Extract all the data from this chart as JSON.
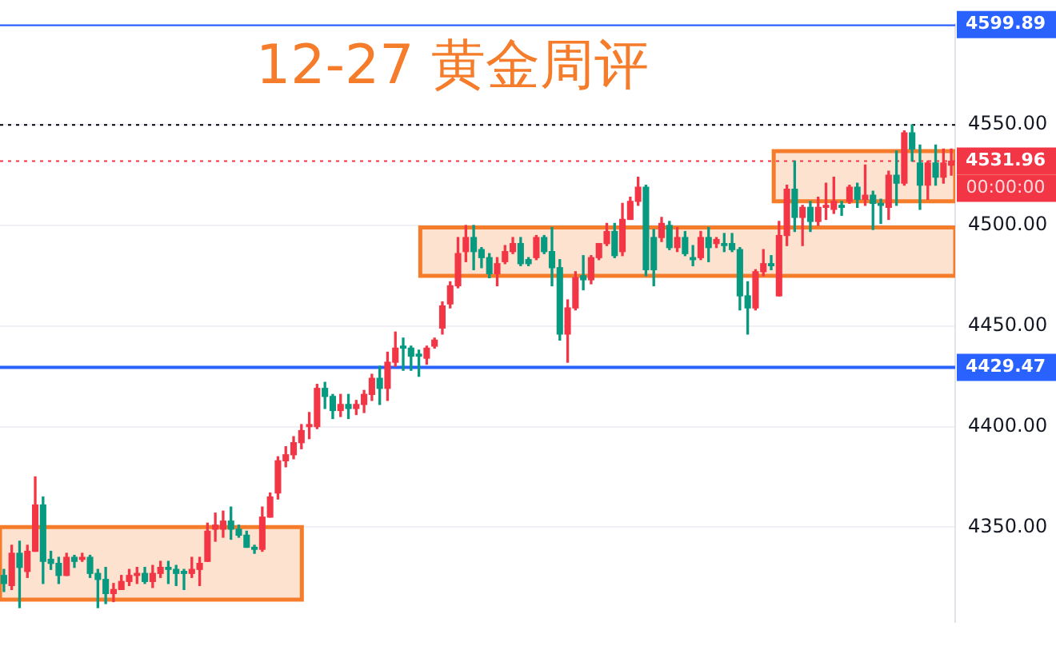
{
  "chart_data": {
    "type": "candlestick",
    "title": "12-27 黄金周评",
    "categories": [
      null,
      null,
      null,
      null,
      null,
      null,
      null,
      null,
      null,
      null,
      null,
      null,
      null,
      null,
      null,
      null,
      null,
      null,
      null,
      null,
      null,
      null,
      null,
      null,
      null,
      null,
      null,
      null,
      null,
      null,
      null,
      null,
      null,
      null,
      null,
      null,
      null,
      null,
      null,
      null,
      null,
      null,
      null,
      null,
      null,
      null,
      null,
      null,
      null,
      null,
      null,
      null,
      null,
      null,
      null,
      null,
      null,
      null,
      null,
      null,
      null,
      null,
      null,
      null,
      null,
      null,
      null,
      null,
      null,
      null,
      null,
      null,
      null,
      null,
      null,
      null,
      null,
      null,
      null,
      null,
      null,
      null,
      null,
      null,
      null,
      null,
      null,
      null,
      null,
      null,
      null,
      null,
      null,
      null,
      null,
      null,
      null,
      null,
      null,
      null,
      null,
      null,
      null,
      null,
      null,
      null,
      null,
      null,
      null,
      null,
      null,
      null,
      null,
      null,
      null,
      null,
      null,
      null,
      null,
      null,
      null,
      null
    ],
    "ohlc": [
      [
        4326,
        4329,
        4318,
        4322
      ],
      [
        4321,
        4341,
        4319,
        4337
      ],
      [
        4337,
        4343,
        4310,
        4330
      ],
      [
        4328,
        4341,
        4325,
        4338
      ],
      [
        4338,
        4375,
        4338,
        4361
      ],
      [
        4361,
        4365,
        4322,
        4333
      ],
      [
        4334,
        4338,
        4329,
        4332
      ],
      [
        4332,
        4335,
        4322,
        4326
      ],
      [
        4326,
        4337,
        4326,
        4335
      ],
      [
        4335,
        4336,
        4330,
        4333
      ],
      [
        4334,
        4337,
        4333,
        4335
      ],
      [
        4335,
        4336,
        4325,
        4327
      ],
      [
        4327,
        4329,
        4310,
        4324
      ],
      [
        4324,
        4330,
        4312,
        4317
      ],
      [
        4317,
        4322,
        4313,
        4319
      ],
      [
        4319,
        4326,
        4319,
        4323
      ],
      [
        4323,
        4329,
        4321,
        4326
      ],
      [
        4326,
        4330,
        4322,
        4327
      ],
      [
        4327,
        4330,
        4322,
        4323
      ],
      [
        4323,
        4331,
        4320,
        4327
      ],
      [
        4327,
        4333,
        4325,
        4330
      ],
      [
        4330,
        4333,
        4322,
        4329
      ],
      [
        4329,
        4331,
        4321,
        4327
      ],
      [
        4328,
        4329,
        4319,
        4327
      ],
      [
        4327,
        4335,
        4325,
        4329
      ],
      [
        4329,
        4335,
        4321,
        4332
      ],
      [
        4333,
        4352,
        4333,
        4348
      ],
      [
        4349,
        4357,
        4343,
        4351
      ],
      [
        4349,
        4358,
        4345,
        4353
      ],
      [
        4353,
        4360,
        4344,
        4349
      ],
      [
        4349,
        4351,
        4345,
        4346
      ],
      [
        4346,
        4348,
        4340,
        4340
      ],
      [
        4340,
        4341,
        4337,
        4339
      ],
      [
        4339,
        4360,
        4338,
        4355
      ],
      [
        4355,
        4367,
        4355,
        4365
      ],
      [
        4367,
        4385,
        4364,
        4383
      ],
      [
        4383,
        4390,
        4380,
        4386
      ],
      [
        4386,
        4395,
        4384,
        4392
      ],
      [
        4392,
        4401,
        4389,
        4398
      ],
      [
        4400,
        4407,
        4394,
        4401
      ],
      [
        4400,
        4421,
        4399,
        4419
      ],
      [
        4419,
        4422,
        4409,
        4415
      ],
      [
        4415,
        4416,
        4404,
        4408
      ],
      [
        4408,
        4416,
        4405,
        4411
      ],
      [
        4411,
        4416,
        4404,
        4409
      ],
      [
        4409,
        4413,
        4406,
        4411
      ],
      [
        4411,
        4418,
        4407,
        4416
      ],
      [
        4416,
        4426,
        4413,
        4424
      ],
      [
        4424,
        4430,
        4411,
        4419
      ],
      [
        4419,
        4437,
        4413,
        4432
      ],
      [
        4432,
        4447,
        4430,
        4439
      ],
      [
        4440,
        4444,
        4428,
        4439
      ],
      [
        4439,
        4440,
        4428,
        4435
      ],
      [
        4436,
        4438,
        4425,
        4435
      ],
      [
        4434,
        4440,
        4431,
        4439
      ],
      [
        4440,
        4444,
        4439,
        4443
      ],
      [
        4449,
        4462,
        4446,
        4460
      ],
      [
        4461,
        4472,
        4459,
        4470
      ],
      [
        4470,
        4494,
        4469,
        4486
      ],
      [
        4487,
        4500,
        4482,
        4494
      ],
      [
        4494,
        4500,
        4478,
        4487
      ],
      [
        4488,
        4489,
        4479,
        4484
      ],
      [
        4484,
        4486,
        4474,
        4476
      ],
      [
        4476,
        4484,
        4470,
        4481
      ],
      [
        4482,
        4490,
        4481,
        4487
      ],
      [
        4487,
        4494,
        4486,
        4491
      ],
      [
        4491,
        4494,
        4480,
        4481
      ],
      [
        4483,
        4484,
        4480,
        4481
      ],
      [
        4484,
        4495,
        4483,
        4494
      ],
      [
        4494,
        4495,
        4486,
        4487
      ],
      [
        4487,
        4499,
        4470,
        4479
      ],
      [
        4479,
        4483,
        4443,
        4446
      ],
      [
        4446,
        4463,
        4432,
        4459
      ],
      [
        4459,
        4477,
        4458,
        4474
      ],
      [
        4475,
        4485,
        4468,
        4473
      ],
      [
        4473,
        4485,
        4471,
        4484
      ],
      [
        4484,
        4491,
        4483,
        4491
      ],
      [
        4491,
        4501,
        4490,
        4497
      ],
      [
        4497,
        4501,
        4484,
        4485
      ],
      [
        4487,
        4511,
        4485,
        4503
      ],
      [
        4503,
        4514,
        4503,
        4512
      ],
      [
        4512,
        4524,
        4510,
        4519
      ],
      [
        4519,
        4520,
        4475,
        4478
      ],
      [
        4494,
        4498,
        4470,
        4478
      ],
      [
        4494,
        4504,
        4492,
        4501
      ],
      [
        4500,
        4502,
        4488,
        4489
      ],
      [
        4489,
        4499,
        4487,
        4494
      ],
      [
        4494,
        4497,
        4485,
        4486
      ],
      [
        4484,
        4490,
        4480,
        4483
      ],
      [
        4484,
        4497,
        4483,
        4494
      ],
      [
        4494,
        4499,
        4482,
        4489
      ],
      [
        4491,
        4494,
        4489,
        4493
      ],
      [
        4491,
        4496,
        4487,
        4490
      ],
      [
        4491,
        4496,
        4487,
        4488
      ],
      [
        4488,
        4489,
        4458,
        4465
      ],
      [
        4465,
        4472,
        4446,
        4459
      ],
      [
        4459,
        4478,
        4458,
        4477
      ],
      [
        4477,
        4488,
        4475,
        4481
      ],
      [
        4481,
        4485,
        4478,
        4480
      ],
      [
        4465,
        4502,
        4465,
        4495
      ],
      [
        4495,
        4520,
        4490,
        4518
      ],
      [
        4518,
        4532,
        4497,
        4504
      ],
      [
        4504,
        4510,
        4490,
        4509
      ],
      [
        4509,
        4512,
        4497,
        4502
      ],
      [
        4502,
        4514,
        4500,
        4509
      ],
      [
        4509,
        4521,
        4503,
        4510
      ],
      [
        4508,
        4524,
        4506,
        4512
      ],
      [
        4510,
        4512,
        4505,
        4509
      ],
      [
        4512,
        4520,
        4511,
        4519
      ],
      [
        4519,
        4521,
        4509,
        4513
      ],
      [
        4513,
        4530,
        4510,
        4515
      ],
      [
        4515,
        4517,
        4498,
        4511
      ],
      [
        4511,
        4513,
        4501,
        4510
      ],
      [
        4509,
        4527,
        4503,
        4525
      ],
      [
        4525,
        4537,
        4510,
        4521
      ],
      [
        4521,
        4547,
        4520,
        4546
      ],
      [
        4546,
        4550,
        4532,
        4538
      ],
      [
        4531,
        4540,
        4508,
        4520
      ],
      [
        4520,
        4532,
        4513,
        4531
      ],
      [
        4531,
        4540,
        4520,
        4524
      ],
      [
        4524,
        4538,
        4521,
        4531
      ],
      [
        4530,
        4538,
        4525,
        4531.96
      ]
    ],
    "colors": [
      "#089981",
      "#f23645",
      "#089981",
      "#f23645",
      "#f23645",
      "#089981",
      "#089981",
      "#089981",
      "#f23645",
      "#089981",
      "#f23645",
      "#089981",
      "#089981",
      "#089981",
      "#f23645",
      "#f23645",
      "#f23645",
      "#f23645",
      "#089981",
      "#f23645",
      "#f23645",
      "#089981",
      "#089981",
      "#089981",
      "#f23645",
      "#f23645",
      "#f23645",
      "#f23645",
      "#f23645",
      "#089981",
      "#089981",
      "#089981",
      "#089981",
      "#f23645",
      "#f23645",
      "#f23645",
      "#f23645",
      "#f23645",
      "#f23645",
      "#f23645",
      "#f23645",
      "#089981",
      "#089981",
      "#f23645",
      "#089981",
      "#f23645",
      "#f23645",
      "#f23645",
      "#089981",
      "#f23645",
      "#f23645",
      "#089981",
      "#089981",
      "#089981",
      "#f23645",
      "#f23645",
      "#f23645",
      "#f23645",
      "#f23645",
      "#f23645",
      "#089981",
      "#089981",
      "#089981",
      "#f23645",
      "#f23645",
      "#f23645",
      "#089981",
      "#089981",
      "#f23645",
      "#089981",
      "#089981",
      "#089981",
      "#f23645",
      "#f23645",
      "#089981",
      "#f23645",
      "#f23645",
      "#f23645",
      "#089981",
      "#f23645",
      "#f23645",
      "#f23645",
      "#089981",
      "#089981",
      "#f23645",
      "#089981",
      "#f23645",
      "#089981",
      "#089981",
      "#f23645",
      "#089981",
      "#f23645",
      "#089981",
      "#089981",
      "#089981",
      "#089981",
      "#f23645",
      "#f23645",
      "#089981",
      "#f23645",
      "#f23645",
      "#089981",
      "#f23645",
      "#089981",
      "#f23645",
      "#f23645",
      "#f23645",
      "#089981",
      "#f23645",
      "#089981",
      "#f23645",
      "#089981",
      "#089981",
      "#f23645",
      "#089981",
      "#f23645",
      "#089981",
      "#089981",
      "#f23645",
      "#089981",
      "#f23645",
      "#f23645"
    ],
    "ylim": [
      4303,
      4600
    ],
    "yticks": [
      {
        "value": 4350,
        "label": "4350.00"
      },
      {
        "value": 4400,
        "label": "4400.00"
      },
      {
        "value": 4450,
        "label": "4450.00"
      },
      {
        "value": 4500,
        "label": "4500.00"
      },
      {
        "value": 4550,
        "label": "4550.00"
      }
    ],
    "ref_lines": [
      {
        "axis": "y",
        "value": 4599.89,
        "label": "4599.89",
        "color": "#2962ff",
        "line_style": "solid"
      },
      {
        "axis": "y",
        "value": 4550,
        "label": null,
        "color": "#000000",
        "line_style": "dotted"
      },
      {
        "axis": "y",
        "value": 4531.96,
        "label": "4531.96",
        "color": "#f23645",
        "line_style": "dotted"
      },
      {
        "axis": "y",
        "value": 4429.47,
        "label": "4429.47",
        "color": "#2962ff",
        "line_style": "solid"
      }
    ],
    "bands": [
      {
        "axis": "y",
        "from": 4314,
        "to": 4350,
        "color": "#f57c2a",
        "label": null
      },
      {
        "axis": "y",
        "from": 4475,
        "to": 4499,
        "color": "#f57c2a",
        "label": null
      },
      {
        "axis": "y",
        "from": 4512,
        "to": 4537,
        "color": "#f57c2a",
        "label": null
      }
    ],
    "annotations": [
      "00:00:00"
    ],
    "grid": "y",
    "legend": false,
    "tick_labels": "y"
  }
}
